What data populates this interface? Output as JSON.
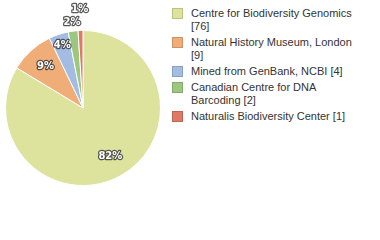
{
  "chart_data": {
    "type": "pie",
    "categories": [
      "Centre for Biodiversity Genomics [76]",
      "Natural History Museum, London [9]",
      "Mined from GenBank, NCBI [4]",
      "Canadian Centre for DNA Barcoding [2]",
      "Naturalis Biodiversity Center [1]"
    ],
    "values": [
      82,
      9,
      4,
      2,
      1
    ],
    "value_labels": [
      "82%",
      "9%",
      "4%",
      "2%",
      "1%"
    ],
    "colors": [
      "#dde39d",
      "#f0ad78",
      "#a3bde2",
      "#9cc77e",
      "#e07866"
    ],
    "data_labels": true,
    "legend": "right"
  }
}
